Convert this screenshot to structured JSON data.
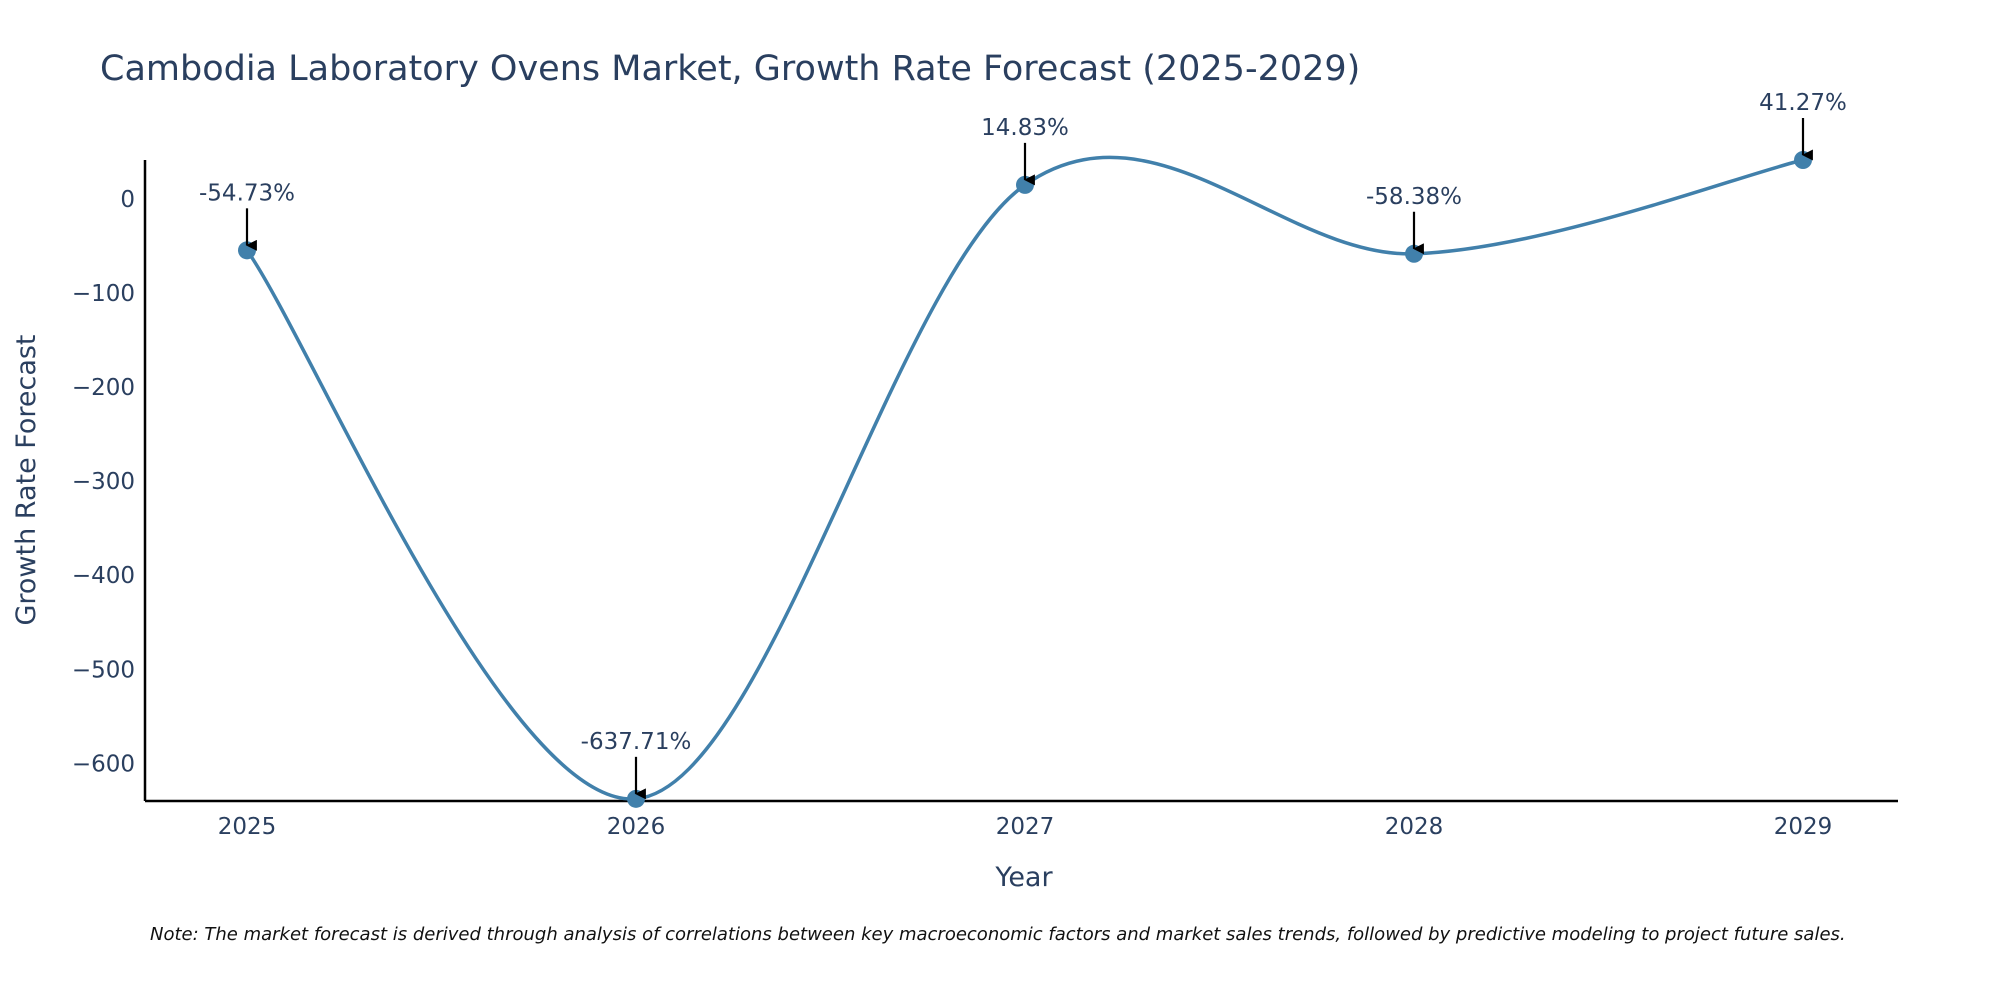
{
  "chart_data": {
    "type": "line",
    "title": "Cambodia Laboratory Ovens Market, Growth Rate Forecast (2025-2029)",
    "xlabel": "Year",
    "ylabel": "Growth Rate Forecast",
    "categories": [
      "2025",
      "2026",
      "2027",
      "2028",
      "2029"
    ],
    "series": [
      {
        "name": "Growth Rate Forecast",
        "values": [
          -54.73,
          -637.71,
          14.83,
          -58.38,
          41.27
        ]
      }
    ],
    "data_labels": [
      "-54.73%",
      "-637.71%",
      "14.83%",
      "-58.38%",
      "41.27%"
    ],
    "ylim": [
      -640,
      41.27
    ],
    "yticks": [
      0,
      -100,
      -200,
      -300,
      -400,
      -500,
      -600
    ],
    "ytick_labels": [
      "0",
      "−100",
      "−200",
      "−300",
      "−400",
      "−500",
      "−600"
    ],
    "grid": false,
    "line_color": "#4180ab",
    "note": "Note: The market forecast is derived through analysis of correlations between key macroeconomic factors and market sales trends, followed by predictive modeling to project future sales."
  }
}
